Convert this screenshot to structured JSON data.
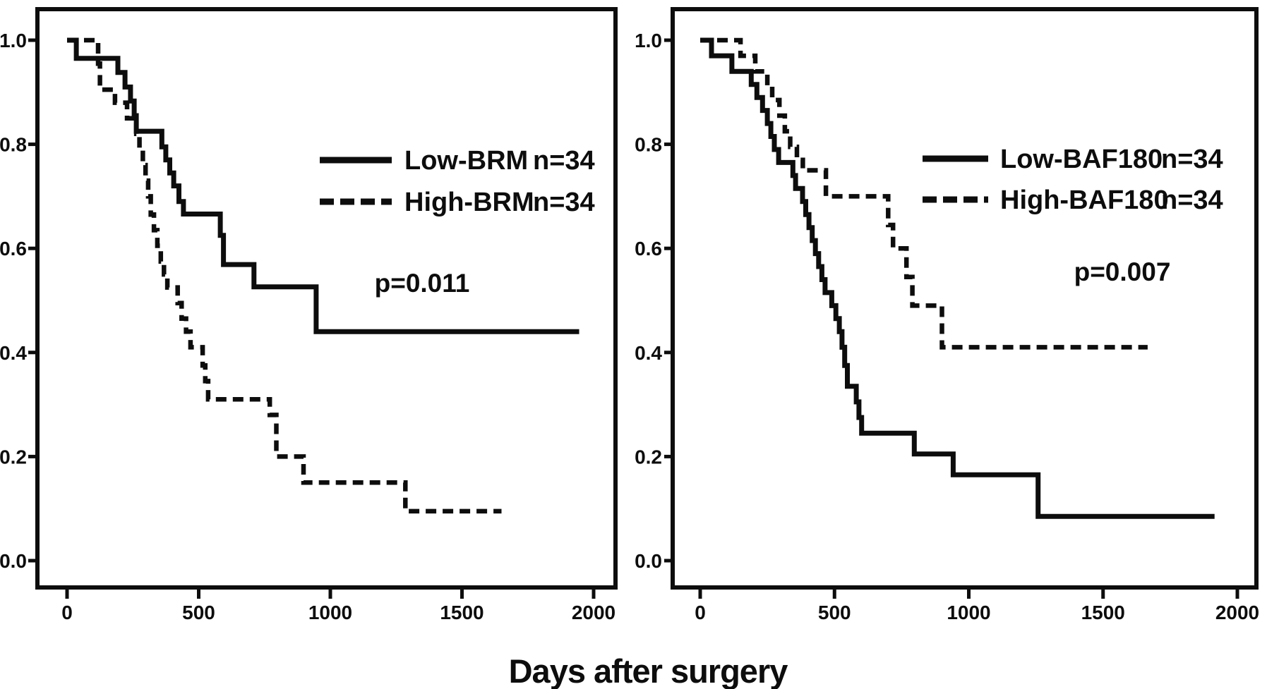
{
  "figure": {
    "xlabel": "Days after surgery",
    "background_color": "#ffffff",
    "ink_color": "#0d0d0d"
  },
  "chart_data": [
    {
      "type": "line",
      "variant": "kaplan-meier-step",
      "panel": "left",
      "title": "",
      "xlabel": "Days after surgery",
      "ylabel": "",
      "xlim": [
        0,
        2000
      ],
      "ylim": [
        0.0,
        1.0
      ],
      "xticks": [
        0,
        500,
        1000,
        1500,
        2000
      ],
      "yticks": [
        1.0,
        0.8,
        0.6,
        0.4,
        0.2,
        0.0
      ],
      "grid": false,
      "legend_position": "upper-right-inside",
      "p_value_label": "p=0.011",
      "legend": [
        {
          "label": "Low-BRM",
          "count_label": "n=34",
          "line_style": "solid"
        },
        {
          "label": "High-BRM",
          "count_label": "n=34",
          "line_style": "dashed"
        }
      ],
      "series": [
        {
          "name": "Low-BRM",
          "n": 34,
          "line_style": "solid",
          "steps": [
            [
              0,
              1.0
            ],
            [
              35,
              0.965
            ],
            [
              193,
              0.938
            ],
            [
              220,
              0.91
            ],
            [
              241,
              0.883
            ],
            [
              255,
              0.855
            ],
            [
              263,
              0.825
            ],
            [
              360,
              0.795
            ],
            [
              375,
              0.77
            ],
            [
              390,
              0.745
            ],
            [
              405,
              0.72
            ],
            [
              425,
              0.69
            ],
            [
              442,
              0.666
            ],
            [
              582,
              0.625
            ],
            [
              594,
              0.569
            ],
            [
              710,
              0.526
            ],
            [
              946,
              0.44
            ],
            [
              1945,
              0.44
            ]
          ]
        },
        {
          "name": "High-BRM",
          "n": 34,
          "line_style": "dashed",
          "steps": [
            [
              0,
              1.0
            ],
            [
              118,
              0.955
            ],
            [
              125,
              0.905
            ],
            [
              182,
              0.88
            ],
            [
              228,
              0.85
            ],
            [
              263,
              0.82
            ],
            [
              275,
              0.79
            ],
            [
              288,
              0.76
            ],
            [
              298,
              0.73
            ],
            [
              308,
              0.7
            ],
            [
              318,
              0.665
            ],
            [
              330,
              0.635
            ],
            [
              343,
              0.605
            ],
            [
              356,
              0.575
            ],
            [
              368,
              0.55
            ],
            [
              381,
              0.525
            ],
            [
              420,
              0.495
            ],
            [
              435,
              0.465
            ],
            [
              452,
              0.44
            ],
            [
              469,
              0.41
            ],
            [
              515,
              0.375
            ],
            [
              525,
              0.345
            ],
            [
              536,
              0.31
            ],
            [
              770,
              0.28
            ],
            [
              795,
              0.2
            ],
            [
              898,
              0.15
            ],
            [
              1285,
              0.095
            ],
            [
              1650,
              0.095
            ]
          ]
        }
      ]
    },
    {
      "type": "line",
      "variant": "kaplan-meier-step",
      "panel": "right",
      "title": "",
      "xlabel": "Days after surgery",
      "ylabel": "",
      "xlim": [
        0,
        2000
      ],
      "ylim": [
        0.0,
        1.0
      ],
      "xticks": [
        0,
        500,
        1000,
        1500,
        2000
      ],
      "yticks": [
        1.0,
        0.8,
        0.6,
        0.4,
        0.2,
        0.0
      ],
      "grid": false,
      "legend_position": "upper-right-inside",
      "p_value_label": "p=0.007",
      "legend": [
        {
          "label": "Low-BAF180",
          "count_label": "n=34",
          "line_style": "solid"
        },
        {
          "label": "High-BAF180",
          "count_label": "n=34",
          "line_style": "dashed"
        }
      ],
      "series": [
        {
          "name": "Low-BAF180",
          "n": 34,
          "line_style": "solid",
          "steps": [
            [
              0,
              1.0
            ],
            [
              42,
              0.97
            ],
            [
              118,
              0.94
            ],
            [
              190,
              0.915
            ],
            [
              211,
              0.89
            ],
            [
              232,
              0.865
            ],
            [
              250,
              0.84
            ],
            [
              263,
              0.815
            ],
            [
              276,
              0.79
            ],
            [
              292,
              0.765
            ],
            [
              345,
              0.74
            ],
            [
              355,
              0.715
            ],
            [
              381,
              0.69
            ],
            [
              393,
              0.665
            ],
            [
              405,
              0.64
            ],
            [
              417,
              0.615
            ],
            [
              429,
              0.59
            ],
            [
              441,
              0.565
            ],
            [
              453,
              0.54
            ],
            [
              465,
              0.515
            ],
            [
              490,
              0.49
            ],
            [
              505,
              0.465
            ],
            [
              518,
              0.44
            ],
            [
              528,
              0.41
            ],
            [
              538,
              0.375
            ],
            [
              548,
              0.335
            ],
            [
              581,
              0.305
            ],
            [
              591,
              0.275
            ],
            [
              601,
              0.245
            ],
            [
              797,
              0.205
            ],
            [
              942,
              0.165
            ],
            [
              1258,
              0.085
            ],
            [
              1915,
              0.085
            ]
          ]
        },
        {
          "name": "High-BAF180",
          "n": 34,
          "line_style": "dashed",
          "steps": [
            [
              0,
              1.0
            ],
            [
              150,
              0.97
            ],
            [
              205,
              0.94
            ],
            [
              250,
              0.912
            ],
            [
              268,
              0.885
            ],
            [
              295,
              0.855
            ],
            [
              315,
              0.825
            ],
            [
              335,
              0.795
            ],
            [
              360,
              0.77
            ],
            [
              382,
              0.75
            ],
            [
              468,
              0.7
            ],
            [
              700,
              0.645
            ],
            [
              718,
              0.6
            ],
            [
              768,
              0.545
            ],
            [
              790,
              0.49
            ],
            [
              900,
              0.41
            ],
            [
              1666,
              0.41
            ]
          ]
        }
      ]
    }
  ]
}
